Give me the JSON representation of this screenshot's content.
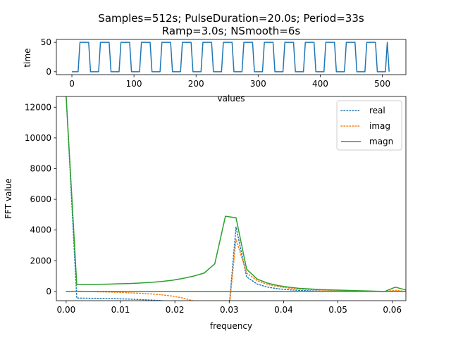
{
  "chart_data": [
    {
      "type": "line",
      "title_line1": "Samples=512s; PulseDuration=20.0s; Period=33s",
      "title_line2": "Ramp=3.0s; NSmooth=6s",
      "xlabel": "values",
      "ylabel": "time",
      "xlim": [
        -25,
        538
      ],
      "ylim": [
        -5,
        55
      ],
      "xticks": [
        0,
        100,
        200,
        300,
        400,
        500
      ],
      "yticks": [
        0,
        50
      ],
      "grid": false,
      "pulse": {
        "period": 33,
        "pulse_duration": 20,
        "ramp": 3,
        "amplitude": 50,
        "first_rise": 10,
        "last_sample": 511
      },
      "series": [
        {
          "color": "#1f77b4"
        }
      ]
    },
    {
      "type": "line",
      "xlabel": "frequency",
      "ylabel": "FFT value",
      "xlim": [
        -0.0018,
        0.0625
      ],
      "ylim": [
        -600,
        12700
      ],
      "xticks": [
        0.0,
        0.01,
        0.02,
        0.03,
        0.04,
        0.05,
        0.06
      ],
      "xtick_labels": [
        "0.00",
        "0.01",
        "0.02",
        "0.03",
        "0.04",
        "0.05",
        "0.06"
      ],
      "yticks": [
        0,
        2000,
        4000,
        6000,
        8000,
        10000,
        12000
      ],
      "grid": false,
      "legend": "top-right",
      "series": [
        {
          "name": "real",
          "style": "dotted",
          "color": "#1f77b4",
          "x": [
            0.0,
            0.00195,
            0.0039,
            0.00586,
            0.00781,
            0.00977,
            0.01172,
            0.01367,
            0.01563,
            0.01758,
            0.01953,
            0.02148,
            0.02344,
            0.02539,
            0.02734,
            0.0293,
            0.03125,
            0.0332,
            0.03516,
            0.03711,
            0.03906,
            0.04102,
            0.04297,
            0.04492,
            0.04688,
            0.04883,
            0.05078,
            0.05273,
            0.05469,
            0.05664,
            0.05859,
            0.06055,
            0.0625
          ],
          "y": [
            12700,
            -430,
            -440,
            -450,
            -460,
            -480,
            -500,
            -530,
            -560,
            -600,
            -680,
            -800,
            -1000,
            -1500,
            -2500,
            -3800,
            4200,
            950,
            480,
            280,
            170,
            110,
            70,
            40,
            20,
            10,
            5,
            3,
            2,
            1,
            0,
            0,
            0
          ]
        },
        {
          "name": "imag",
          "style": "dotted",
          "color": "#ff7f0e",
          "x": [
            0.0,
            0.00195,
            0.0039,
            0.00586,
            0.00781,
            0.00977,
            0.01172,
            0.01367,
            0.01563,
            0.01758,
            0.01953,
            0.02148,
            0.02344,
            0.02539,
            0.02734,
            0.0293,
            0.03125,
            0.0332,
            0.03516,
            0.03711,
            0.03906,
            0.04102,
            0.04297,
            0.04492,
            0.04688,
            0.04883,
            0.05078,
            0.05273,
            0.05469,
            0.05664,
            0.05859,
            0.06055,
            0.0625
          ],
          "y": [
            0,
            20,
            0,
            -20,
            -40,
            -60,
            -90,
            -120,
            -160,
            -220,
            -300,
            -430,
            -620,
            -1000,
            -1800,
            -3600,
            3400,
            1200,
            700,
            450,
            310,
            220,
            160,
            120,
            90,
            70,
            50,
            35,
            20,
            10,
            0,
            80,
            0
          ]
        },
        {
          "name": "magn",
          "style": "solid",
          "color": "#2ca02c",
          "x": [
            0.0,
            0.00195,
            0.0039,
            0.00586,
            0.00781,
            0.00977,
            0.01172,
            0.01367,
            0.01563,
            0.01758,
            0.01953,
            0.02148,
            0.02344,
            0.02539,
            0.02734,
            0.0293,
            0.03125,
            0.0332,
            0.03516,
            0.03711,
            0.03906,
            0.04102,
            0.04297,
            0.04492,
            0.04688,
            0.04883,
            0.05078,
            0.05273,
            0.05469,
            0.05664,
            0.05859,
            0.06055,
            0.0625
          ],
          "y": [
            12700,
            450,
            455,
            465,
            480,
            500,
            520,
            550,
            590,
            650,
            730,
            850,
            1000,
            1200,
            1800,
            4900,
            4800,
            1450,
            800,
            540,
            380,
            280,
            200,
            160,
            120,
            100,
            80,
            60,
            40,
            20,
            0,
            280,
            100
          ]
        },
        {
          "name": "",
          "style": "solid",
          "color": "#2ca02c",
          "role": "zero-line",
          "x": [
            0.0,
            0.0625
          ],
          "y": [
            0,
            0
          ]
        }
      ]
    }
  ]
}
